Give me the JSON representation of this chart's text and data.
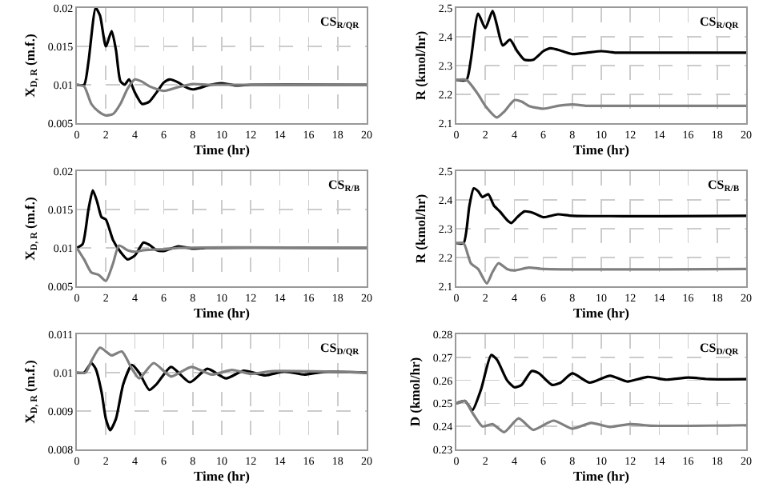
{
  "chart_data": [
    {
      "type": "line",
      "xlabel": "Time (hr)",
      "ylabel": "X$_{D, R}$ (m.f.)",
      "annotations": [
        "CS$_{R/QR}$"
      ],
      "xlim": [
        0,
        20
      ],
      "xticks": [
        0,
        2,
        4,
        6,
        8,
        10,
        12,
        14,
        16,
        18,
        20
      ],
      "ylim": [
        0.005,
        0.02
      ],
      "yticks": [
        0.005,
        0.01,
        0.015,
        0.02
      ],
      "grid": true,
      "marker": "none",
      "line_style": "solid",
      "series": [
        {
          "color": "#000000",
          "x": [
            0,
            0.5,
            0.8,
            1.3,
            1.6,
            2.0,
            2.4,
            2.7,
            3.0,
            3.3,
            3.6,
            4.0,
            4.5,
            5,
            5.5,
            6.0,
            6.4,
            7,
            7.5,
            8,
            8.5,
            9,
            10,
            11,
            12,
            20
          ],
          "values": [
            0.01,
            0.01,
            0.013,
            0.02,
            0.019,
            0.015,
            0.017,
            0.0145,
            0.0105,
            0.01,
            0.0107,
            0.009,
            0.0075,
            0.0078,
            0.009,
            0.0103,
            0.0107,
            0.0103,
            0.0097,
            0.0094,
            0.0096,
            0.0099,
            0.0102,
            0.0099,
            0.01,
            0.01
          ]
        },
        {
          "color": "#808080",
          "x": [
            0,
            0.5,
            1,
            1.5,
            2,
            2.5,
            3,
            3.5,
            4,
            4.5,
            5,
            6,
            7,
            8,
            9,
            10,
            20
          ],
          "values": [
            0.01,
            0.0098,
            0.0075,
            0.0065,
            0.006,
            0.0062,
            0.0075,
            0.0095,
            0.0107,
            0.0104,
            0.0098,
            0.0092,
            0.0097,
            0.0101,
            0.01,
            0.01,
            0.01
          ]
        }
      ]
    },
    {
      "type": "line",
      "xlabel": "Time (hr)",
      "ylabel": "R (kmol/hr)",
      "annotations": [
        "CS$_{R/QR}$"
      ],
      "xlim": [
        0,
        20
      ],
      "xticks": [
        0,
        2,
        4,
        6,
        8,
        10,
        12,
        14,
        16,
        18,
        20
      ],
      "ylim": [
        2.1,
        2.5
      ],
      "yticks": [
        2.1,
        2.2,
        2.3,
        2.4,
        2.5
      ],
      "grid": true,
      "marker": "none",
      "line_style": "solid",
      "series": [
        {
          "color": "#000000",
          "x": [
            0,
            0.7,
            1,
            1.5,
            2,
            2.5,
            2.8,
            3.2,
            3.7,
            4.2,
            4.7,
            5.3,
            6,
            6.5,
            7,
            8,
            9,
            10,
            11,
            12,
            20
          ],
          "values": [
            2.25,
            2.25,
            2.32,
            2.48,
            2.43,
            2.49,
            2.44,
            2.37,
            2.39,
            2.35,
            2.32,
            2.32,
            2.35,
            2.36,
            2.355,
            2.34,
            2.345,
            2.35,
            2.345,
            2.345,
            2.345
          ]
        },
        {
          "color": "#808080",
          "x": [
            0,
            0.7,
            1.5,
            2,
            2.8,
            3.3,
            4,
            4.5,
            5,
            6,
            7,
            8,
            9,
            10,
            20
          ],
          "values": [
            2.25,
            2.25,
            2.2,
            2.16,
            2.12,
            2.14,
            2.18,
            2.175,
            2.16,
            2.15,
            2.16,
            2.165,
            2.16,
            2.16,
            2.16
          ]
        }
      ]
    },
    {
      "type": "line",
      "xlabel": "Time (hr)",
      "ylabel": "X$_{D, R}$ (m.f.)",
      "annotations": [
        "CS$_{R/B}$"
      ],
      "xlim": [
        0,
        20
      ],
      "xticks": [
        0,
        2,
        4,
        6,
        8,
        10,
        12,
        14,
        16,
        18,
        20
      ],
      "ylim": [
        0.005,
        0.02
      ],
      "yticks": [
        0.005,
        0.01,
        0.015,
        0.02
      ],
      "grid": true,
      "marker": "none",
      "line_style": "solid",
      "series": [
        {
          "color": "#000000",
          "x": [
            0,
            0.4,
            0.8,
            1.1,
            1.4,
            1.7,
            2,
            2.5,
            3,
            3.5,
            4,
            4.6,
            5,
            5.5,
            6,
            7,
            8,
            9,
            20
          ],
          "values": [
            0.01,
            0.0105,
            0.015,
            0.0175,
            0.016,
            0.014,
            0.0137,
            0.011,
            0.0095,
            0.0085,
            0.009,
            0.0107,
            0.0104,
            0.0097,
            0.0096,
            0.0102,
            0.0099,
            0.01,
            0.01
          ]
        },
        {
          "color": "#808080",
          "x": [
            0,
            0.5,
            1,
            1.5,
            2,
            2.5,
            2.9,
            3.5,
            4,
            4.6,
            5.5,
            6,
            7,
            20
          ],
          "values": [
            0.01,
            0.0085,
            0.0068,
            0.0065,
            0.0057,
            0.008,
            0.0103,
            0.0097,
            0.0095,
            0.0097,
            0.0098,
            0.0098,
            0.01,
            0.01
          ]
        }
      ]
    },
    {
      "type": "line",
      "xlabel": "Time (hr)",
      "ylabel": "R (kmol/hr)",
      "annotations": [
        "CS$_{R/B}$"
      ],
      "xlim": [
        0,
        20
      ],
      "xticks": [
        0,
        2,
        4,
        6,
        8,
        10,
        12,
        14,
        16,
        18,
        20
      ],
      "ylim": [
        2.1,
        2.5
      ],
      "yticks": [
        2.1,
        2.2,
        2.3,
        2.4,
        2.5
      ],
      "grid": true,
      "marker": "none",
      "line_style": "solid",
      "series": [
        {
          "color": "#000000",
          "x": [
            0,
            0.5,
            0.9,
            1.2,
            1.5,
            1.8,
            2.2,
            2.6,
            3,
            3.5,
            3.8,
            4.2,
            4.7,
            5.3,
            6,
            7,
            8,
            20
          ],
          "values": [
            2.25,
            2.25,
            2.38,
            2.44,
            2.43,
            2.41,
            2.42,
            2.38,
            2.36,
            2.33,
            2.32,
            2.34,
            2.36,
            2.355,
            2.34,
            2.35,
            2.345,
            2.345
          ]
        },
        {
          "color": "#808080",
          "x": [
            0,
            0.5,
            1,
            1.5,
            2.1,
            2.5,
            2.9,
            3.5,
            4,
            5,
            6,
            20
          ],
          "values": [
            2.25,
            2.25,
            2.18,
            2.16,
            2.11,
            2.15,
            2.18,
            2.16,
            2.155,
            2.165,
            2.16,
            2.16
          ]
        }
      ]
    },
    {
      "type": "line",
      "xlabel": "Time (hr)",
      "ylabel": "X$_{D, R}$ (m.f.)",
      "annotations": [
        "CS$_{D/QR}$"
      ],
      "xlim": [
        0,
        20
      ],
      "xticks": [
        0,
        2,
        4,
        6,
        8,
        10,
        12,
        14,
        16,
        18,
        20
      ],
      "ylim": [
        0.008,
        0.011
      ],
      "yticks": [
        0.008,
        0.009,
        0.01,
        0.011
      ],
      "grid": true,
      "marker": "none",
      "line_style": "solid",
      "series": [
        {
          "color": "#000000",
          "x": [
            0,
            0.5,
            1,
            1.3,
            1.7,
            2,
            2.3,
            2.7,
            3.2,
            3.8,
            4.3,
            5,
            5.5,
            6.5,
            7.8,
            9,
            10.3,
            11.5,
            13,
            14.3,
            15.7,
            17,
            20
          ],
          "values": [
            0.01,
            0.01,
            0.01025,
            0.0101,
            0.0095,
            0.0088,
            0.0085,
            0.0088,
            0.0097,
            0.0102,
            0.01,
            0.00955,
            0.0097,
            0.01015,
            0.00975,
            0.0101,
            0.00985,
            0.01005,
            0.00993,
            0.01003,
            0.00995,
            0.01002,
            0.01
          ]
        },
        {
          "color": "#808080",
          "x": [
            0,
            0.6,
            1,
            1.6,
            2.4,
            3.1,
            3.8,
            4.3,
            5.3,
            6.5,
            7.9,
            9.3,
            10.7,
            12,
            13.5,
            20
          ],
          "values": [
            0.01,
            0.01,
            0.0103,
            0.01065,
            0.01045,
            0.01055,
            0.0101,
            0.00985,
            0.01025,
            0.0099,
            0.01015,
            0.00995,
            0.01007,
            0.00997,
            0.01004,
            0.01
          ]
        }
      ]
    },
    {
      "type": "line",
      "xlabel": "Time (hr)",
      "ylabel": "D (kmol/hr)",
      "annotations": [
        "CS$_{D/QR}$"
      ],
      "xlim": [
        0,
        20
      ],
      "xticks": [
        0,
        2,
        4,
        6,
        8,
        10,
        12,
        14,
        16,
        18,
        20
      ],
      "ylim": [
        0.23,
        0.28
      ],
      "yticks": [
        0.23,
        0.24,
        0.25,
        0.26,
        0.27,
        0.28
      ],
      "grid": true,
      "marker": "none",
      "line_style": "solid",
      "series": [
        {
          "color": "#000000",
          "x": [
            0,
            0.6,
            1.1,
            1.7,
            2.4,
            2.8,
            3.5,
            4,
            4.5,
            5.2,
            5.7,
            6.6,
            7.2,
            8,
            9.2,
            10.6,
            11.8,
            13.2,
            14.5,
            16,
            17.5,
            20
          ],
          "values": [
            0.25,
            0.251,
            0.247,
            0.256,
            0.271,
            0.269,
            0.26,
            0.257,
            0.258,
            0.264,
            0.263,
            0.258,
            0.259,
            0.263,
            0.259,
            0.262,
            0.2595,
            0.2615,
            0.2603,
            0.2612,
            0.2605,
            0.2605
          ]
        },
        {
          "color": "#808080",
          "x": [
            0,
            0.6,
            1.1,
            1.8,
            2.5,
            3.3,
            4.3,
            5.3,
            6.7,
            8,
            9.3,
            10.6,
            12,
            13.5,
            20
          ],
          "values": [
            0.25,
            0.251,
            0.246,
            0.24,
            0.241,
            0.2375,
            0.2435,
            0.2385,
            0.2425,
            0.239,
            0.2415,
            0.2398,
            0.241,
            0.2403,
            0.2405
          ]
        }
      ]
    }
  ]
}
